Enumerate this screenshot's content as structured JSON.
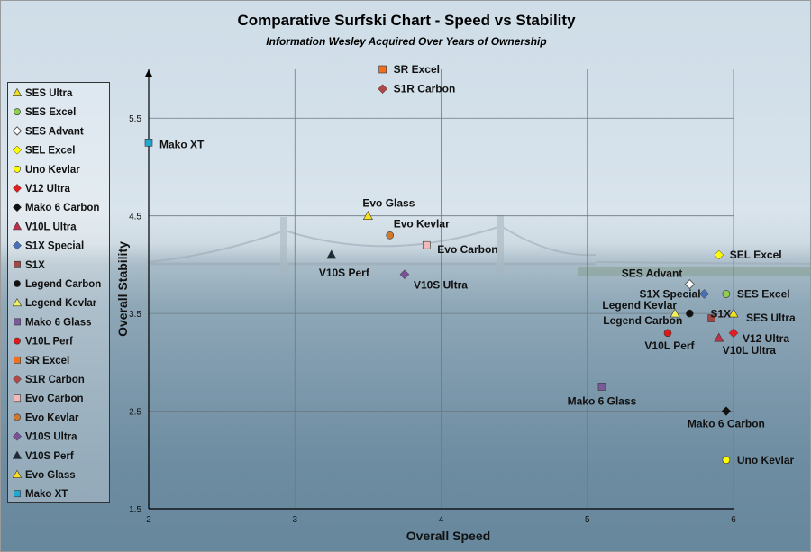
{
  "chart_data": {
    "type": "scatter",
    "title": "Comparative Surfski Chart - Speed vs Stability",
    "subtitle": "Information Wesley Acquired Over Years of Ownership",
    "xlabel": "Overall Speed",
    "ylabel": "Overall Stability",
    "xlim": [
      2,
      6
    ],
    "ylim": [
      1.5,
      6
    ],
    "xticks": [
      "2",
      "3",
      "4",
      "5",
      "6"
    ],
    "yticks": [
      "1.5",
      "2.5",
      "3.5",
      "4.5",
      "5.5"
    ],
    "xtick_values": [
      2,
      3,
      4,
      5,
      6
    ],
    "ytick_values": [
      1.5,
      2.5,
      3.5,
      4.5,
      5.5
    ],
    "grid": true,
    "legend_position": "left",
    "series": [
      {
        "name": "SES Ultra",
        "x": 6.0,
        "y": 3.5,
        "marker": "triangle",
        "color": "#f0e020"
      },
      {
        "name": "SES Excel",
        "x": 5.95,
        "y": 3.7,
        "marker": "circle",
        "color": "#8fcf4f"
      },
      {
        "name": "SES Advant",
        "x": 5.7,
        "y": 3.8,
        "marker": "diamond-open",
        "color": "#555555"
      },
      {
        "name": "SEL Excel",
        "x": 5.9,
        "y": 4.1,
        "marker": "diamond",
        "color": "#ffff00"
      },
      {
        "name": "Uno Kevlar",
        "x": 5.95,
        "y": 2.0,
        "marker": "circle",
        "color": "#ffff00"
      },
      {
        "name": "V12 Ultra",
        "x": 6.0,
        "y": 3.3,
        "marker": "diamond",
        "color": "#e02020"
      },
      {
        "name": "Mako 6 Carbon",
        "x": 5.95,
        "y": 2.5,
        "marker": "diamond",
        "color": "#111111"
      },
      {
        "name": "V10L Ultra",
        "x": 5.9,
        "y": 3.25,
        "marker": "triangle",
        "color": "#c0304a"
      },
      {
        "name": "S1X Special",
        "x": 5.8,
        "y": 3.7,
        "marker": "diamond",
        "color": "#4a6fb8"
      },
      {
        "name": "S1X",
        "x": 5.85,
        "y": 3.45,
        "marker": "square",
        "color": "#a04848"
      },
      {
        "name": "Legend Carbon",
        "x": 5.7,
        "y": 3.5,
        "marker": "circle",
        "color": "#111111"
      },
      {
        "name": "Legend Kevlar",
        "x": 5.6,
        "y": 3.5,
        "marker": "triangle",
        "color": "#f0f060"
      },
      {
        "name": "Mako 6 Glass",
        "x": 5.1,
        "y": 2.75,
        "marker": "square",
        "color": "#7a5a98"
      },
      {
        "name": "V10L Perf",
        "x": 5.55,
        "y": 3.3,
        "marker": "circle",
        "color": "#e01818"
      },
      {
        "name": "SR Excel",
        "x": 3.6,
        "y": 6.0,
        "marker": "square",
        "color": "#f07020"
      },
      {
        "name": "S1R Carbon",
        "x": 3.6,
        "y": 5.8,
        "marker": "diamond",
        "color": "#b04848"
      },
      {
        "name": "Evo Carbon",
        "x": 3.9,
        "y": 4.2,
        "marker": "square",
        "color": "#f4b8b8"
      },
      {
        "name": "Evo Kevlar",
        "x": 3.65,
        "y": 4.3,
        "marker": "circle",
        "color": "#d07a30"
      },
      {
        "name": "V10S Ultra",
        "x": 3.75,
        "y": 3.9,
        "marker": "diamond",
        "color": "#7a5098"
      },
      {
        "name": "V10S Perf",
        "x": 3.25,
        "y": 4.1,
        "marker": "triangle",
        "color": "#1a2a38"
      },
      {
        "name": "Evo Glass",
        "x": 3.5,
        "y": 4.5,
        "marker": "triangle",
        "color": "#f8e020"
      },
      {
        "name": "Mako XT",
        "x": 2.0,
        "y": 5.25,
        "marker": "square",
        "color": "#20a8d0"
      }
    ]
  }
}
